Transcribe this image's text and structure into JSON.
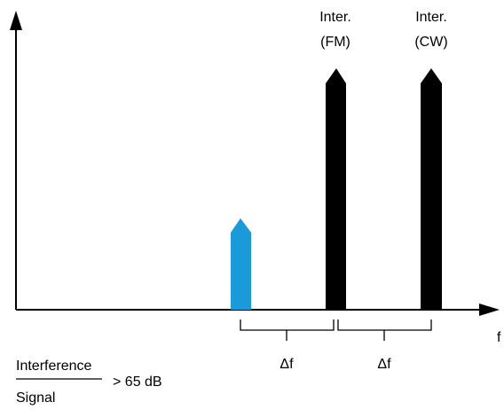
{
  "axis": {
    "x_label": "f"
  },
  "signals": [
    {
      "label_line1": "",
      "label_line2": "",
      "color": "#1a9ad9"
    },
    {
      "label_line1": "Inter.",
      "label_line2": "(FM)",
      "color": "#000000"
    },
    {
      "label_line1": "Inter.",
      "label_line2": "(CW)",
      "color": "#000000"
    }
  ],
  "spacing": {
    "first": "Δf",
    "second": "Δf"
  },
  "ratio": {
    "numerator": "Interference",
    "denominator": "Signal",
    "condition": "> 65 dB"
  }
}
